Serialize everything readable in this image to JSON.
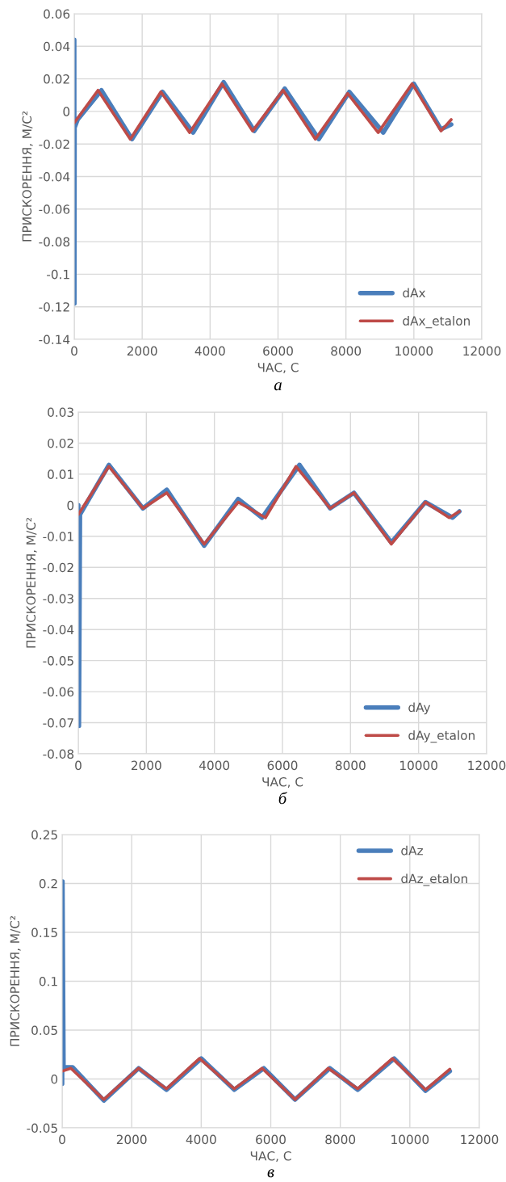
{
  "chart_data": [
    {
      "type": "line",
      "xlabel": "ЧАС, С",
      "ylabel": "ПРИСКОРЕННЯ, М/С²",
      "xlim": [
        0,
        12000
      ],
      "ylim": [
        -0.14,
        0.06
      ],
      "xticks": [
        0,
        2000,
        4000,
        6000,
        8000,
        10000,
        12000
      ],
      "yticks": [
        -0.14,
        -0.12,
        -0.1,
        -0.08,
        -0.06,
        -0.04,
        -0.02,
        0,
        0.02,
        0.04,
        0.06
      ],
      "grid": true,
      "legend": "bottom right",
      "annotations": [
        "а"
      ],
      "series": [
        {
          "name": "dAx",
          "color": "#4a7ebb",
          "x": [
            0,
            5,
            10,
            100,
            800,
            1700,
            2600,
            3500,
            4400,
            5300,
            6200,
            7200,
            8100,
            9100,
            10000,
            10800,
            11100
          ],
          "values": [
            0.044,
            -0.118,
            -0.01,
            -0.005,
            0.013,
            -0.017,
            0.012,
            -0.013,
            0.018,
            -0.012,
            0.014,
            -0.017,
            0.012,
            -0.013,
            0.017,
            -0.011,
            -0.008
          ]
        },
        {
          "name": "dAx_etalon",
          "color": "#be4b48",
          "x": [
            0,
            700,
            1650,
            2550,
            3400,
            4350,
            5250,
            6150,
            7100,
            8050,
            8950,
            9950,
            10800,
            11100
          ],
          "values": [
            -0.007,
            0.013,
            -0.017,
            0.012,
            -0.013,
            0.017,
            -0.012,
            0.013,
            -0.017,
            0.011,
            -0.013,
            0.017,
            -0.012,
            -0.005
          ]
        }
      ]
    },
    {
      "type": "line",
      "xlabel": "ЧАС, С",
      "ylabel": "ПРИСКОРЕННЯ, М/С²",
      "xlim": [
        0,
        12000
      ],
      "ylim": [
        -0.08,
        0.03
      ],
      "xticks": [
        0,
        2000,
        4000,
        6000,
        8000,
        10000,
        12000
      ],
      "yticks": [
        -0.08,
        -0.07,
        -0.06,
        -0.05,
        -0.04,
        -0.03,
        -0.02,
        -0.01,
        0,
        0.01,
        0.02,
        0.03
      ],
      "grid": true,
      "legend": "bottom right",
      "annotations": [
        "б"
      ],
      "series": [
        {
          "name": "dAy",
          "color": "#4a7ebb",
          "x": [
            0,
            20,
            50,
            900,
            1900,
            2600,
            3700,
            4700,
            5400,
            6500,
            7400,
            8100,
            9200,
            10200,
            11000,
            11200
          ],
          "values": [
            0,
            -0.071,
            -0.003,
            0.013,
            -0.001,
            0.005,
            -0.013,
            0.002,
            -0.004,
            0.013,
            -0.001,
            0.004,
            -0.012,
            0.001,
            -0.004,
            -0.002
          ]
        },
        {
          "name": "dAy_etalon",
          "color": "#be4b48",
          "x": [
            0,
            900,
            1900,
            2600,
            3700,
            4700,
            5500,
            6400,
            7400,
            8100,
            9200,
            10200,
            10900,
            11200
          ],
          "values": [
            -0.003,
            0.0125,
            -0.001,
            0.004,
            -0.0125,
            0.001,
            -0.004,
            0.0125,
            -0.001,
            0.004,
            -0.0125,
            0.001,
            -0.004,
            -0.002
          ]
        }
      ]
    },
    {
      "type": "line",
      "xlabel": "ЧАС, С",
      "ylabel": "ПРИСКОРЕННЯ, М/С²",
      "xlim": [
        0,
        12000
      ],
      "ylim": [
        -0.05,
        0.25
      ],
      "xticks": [
        0,
        2000,
        4000,
        6000,
        8000,
        10000,
        12000
      ],
      "yticks": [
        -0.05,
        0,
        0.05,
        0.1,
        0.15,
        0.2,
        0.25
      ],
      "grid": true,
      "legend": "top right",
      "annotations": [
        "в"
      ],
      "series": [
        {
          "name": "dAz",
          "color": "#4a7ebb",
          "x": [
            0,
            10,
            40,
            300,
            1200,
            2200,
            3000,
            4000,
            4950,
            5800,
            6700,
            7700,
            8500,
            9550,
            10450,
            11150
          ],
          "values": [
            -0.005,
            0.202,
            0.012,
            0.012,
            -0.022,
            0.011,
            -0.011,
            0.021,
            -0.011,
            0.011,
            -0.021,
            0.011,
            -0.011,
            0.021,
            -0.012,
            0.008
          ]
        },
        {
          "name": "dAz_etalon",
          "color": "#be4b48",
          "x": [
            0,
            250,
            1200,
            2200,
            3000,
            3950,
            4950,
            5750,
            6700,
            7650,
            8500,
            9500,
            10450,
            11150
          ],
          "values": [
            0.008,
            0.011,
            -0.021,
            0.011,
            -0.01,
            0.021,
            -0.01,
            0.011,
            -0.021,
            0.011,
            -0.01,
            0.021,
            -0.011,
            0.01
          ]
        }
      ]
    }
  ]
}
